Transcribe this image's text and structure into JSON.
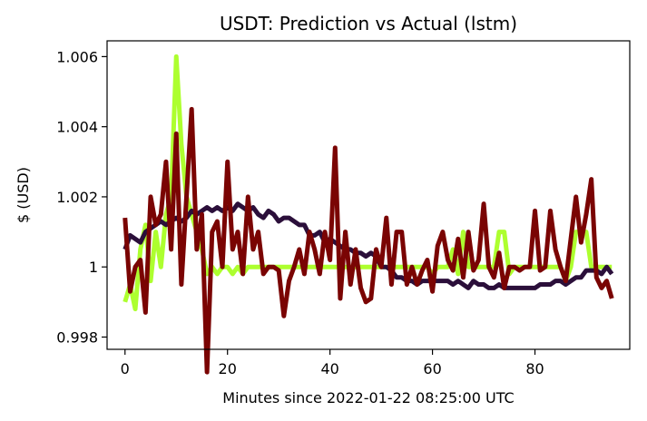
{
  "chart_data": {
    "type": "line",
    "title": "USDT: Prediction vs Actual (lstm)",
    "xlabel": "Minutes since 2022-01-22 08:25:00 UTC",
    "ylabel": "$ (USD)",
    "xlim": [
      -3.5,
      98.5
    ],
    "ylim": [
      0.99765,
      1.00645
    ],
    "xticks": [
      0,
      20,
      40,
      60,
      80
    ],
    "yticks": [
      0.998,
      1.0,
      1.002,
      1.004,
      1.006
    ],
    "xtick_labels": [
      "0",
      "20",
      "40",
      "60",
      "80"
    ],
    "ytick_labels": [
      "0.998",
      "1",
      "1.002",
      "1.004",
      "1.006"
    ],
    "grid": false,
    "series": [
      {
        "color": "#adff2f",
        "x": [
          0,
          1,
          2,
          3,
          4,
          5,
          6,
          7,
          8,
          9,
          10,
          11,
          12,
          13,
          14,
          15,
          16,
          17,
          18,
          19,
          20,
          21,
          22,
          23,
          24,
          25,
          26,
          27,
          28,
          29,
          30,
          31,
          32,
          33,
          34,
          35,
          36,
          37,
          38,
          39,
          40,
          41,
          42,
          43,
          44,
          45,
          46,
          47,
          48,
          49,
          50,
          51,
          52,
          53,
          54,
          55,
          56,
          57,
          58,
          59,
          60,
          61,
          62,
          63,
          64,
          65,
          66,
          67,
          68,
          69,
          70,
          71,
          72,
          73,
          74,
          75,
          76,
          77,
          78,
          79,
          80,
          81,
          82,
          83,
          84,
          85,
          86,
          87,
          88,
          89,
          90,
          91,
          92,
          93,
          94,
          95
        ],
        "y": [
          0.999,
          0.9995,
          0.9988,
          1.0005,
          1.0012,
          0.9996,
          1.001,
          1.0,
          1.0015,
          1.002,
          1.006,
          1.0035,
          1.002,
          1.0015,
          1.001,
          1.0005,
          0.9998,
          1.0,
          0.9998,
          1.0,
          1.0,
          0.9998,
          1.0,
          0.9998,
          1.0,
          1.0,
          1.0,
          1.0,
          1.0,
          1.0,
          1.0,
          1.0,
          1.0,
          1.0,
          1.0,
          1.0,
          1.0,
          1.0,
          1.0,
          1.0,
          1.0,
          1.0,
          1.0,
          1.0,
          1.0,
          1.0,
          1.0,
          1.0,
          1.0,
          1.0,
          1.0,
          1.0,
          1.0,
          1.0,
          1.0,
          1.0,
          1.0,
          1.0,
          1.0,
          1.0,
          0.9998,
          1.0,
          1.0,
          1.0,
          1.0005,
          0.9998,
          1.001,
          1.0,
          1.0,
          1.0,
          1.0,
          1.0,
          1.0,
          1.001,
          1.001,
          0.9998,
          1.0,
          1.0,
          1.0,
          1.0,
          1.0,
          1.0,
          1.0,
          1.0,
          1.0,
          1.0,
          0.9996,
          1.0,
          1.001,
          1.001,
          1.001,
          1.0,
          1.0,
          1.0,
          1.0,
          1.0
        ]
      },
      {
        "color": "#2b0f3a",
        "x": [
          0,
          1,
          2,
          3,
          4,
          5,
          6,
          7,
          8,
          9,
          10,
          11,
          12,
          13,
          14,
          15,
          16,
          17,
          18,
          19,
          20,
          21,
          22,
          23,
          24,
          25,
          26,
          27,
          28,
          29,
          30,
          31,
          32,
          33,
          34,
          35,
          36,
          37,
          38,
          39,
          40,
          41,
          42,
          43,
          44,
          45,
          46,
          47,
          48,
          49,
          50,
          51,
          52,
          53,
          54,
          55,
          56,
          57,
          58,
          59,
          60,
          61,
          62,
          63,
          64,
          65,
          66,
          67,
          68,
          69,
          70,
          71,
          72,
          73,
          74,
          75,
          76,
          77,
          78,
          79,
          80,
          81,
          82,
          83,
          84,
          85,
          86,
          87,
          88,
          89,
          90,
          91,
          92,
          93,
          94,
          95
        ],
        "y": [
          1.0005,
          1.0009,
          1.0008,
          1.0007,
          1.001,
          1.0011,
          1.0012,
          1.0013,
          1.0012,
          1.0013,
          1.0014,
          1.0013,
          1.0014,
          1.0016,
          1.0015,
          1.0016,
          1.0017,
          1.0016,
          1.0017,
          1.0016,
          1.0017,
          1.0016,
          1.0018,
          1.0017,
          1.0016,
          1.0017,
          1.0015,
          1.0014,
          1.0016,
          1.0015,
          1.0013,
          1.0014,
          1.0014,
          1.0013,
          1.0012,
          1.0012,
          1.0009,
          1.0009,
          1.001,
          1.0007,
          1.0008,
          1.0007,
          1.0006,
          1.0005,
          1.0005,
          1.0004,
          1.0004,
          1.0003,
          1.0004,
          1.0003,
          1.0,
          1.0,
          0.9999,
          0.9997,
          0.9997,
          0.9996,
          0.9996,
          0.9995,
          0.9996,
          0.9996,
          0.9996,
          0.9996,
          0.9996,
          0.9996,
          0.9995,
          0.9996,
          0.9995,
          0.9994,
          0.9996,
          0.9995,
          0.9995,
          0.9994,
          0.9994,
          0.9995,
          0.9994,
          0.9994,
          0.9994,
          0.9994,
          0.9994,
          0.9994,
          0.9994,
          0.9995,
          0.9995,
          0.9995,
          0.9996,
          0.9996,
          0.9995,
          0.9996,
          0.9997,
          0.9997,
          0.9999,
          0.9999,
          0.9999,
          0.9998,
          1.0,
          0.9998
        ]
      },
      {
        "color": "#7a0403",
        "x": [
          0,
          1,
          2,
          3,
          4,
          5,
          6,
          7,
          8,
          9,
          10,
          11,
          12,
          13,
          14,
          15,
          16,
          17,
          18,
          19,
          20,
          21,
          22,
          23,
          24,
          25,
          26,
          27,
          28,
          29,
          30,
          31,
          32,
          33,
          34,
          35,
          36,
          37,
          38,
          39,
          40,
          41,
          42,
          43,
          44,
          45,
          46,
          47,
          48,
          49,
          50,
          51,
          52,
          53,
          54,
          55,
          56,
          57,
          58,
          59,
          60,
          61,
          62,
          63,
          64,
          65,
          66,
          67,
          68,
          69,
          70,
          71,
          72,
          73,
          74,
          75,
          76,
          77,
          78,
          79,
          80,
          81,
          82,
          83,
          84,
          85,
          86,
          87,
          88,
          89,
          90,
          91,
          92,
          93,
          94,
          95
        ],
        "y": [
          1.0014,
          0.9993,
          1.0,
          1.0002,
          0.9987,
          1.002,
          1.0012,
          1.0015,
          1.003,
          1.0005,
          1.0038,
          0.9995,
          1.002,
          1.0045,
          1.0005,
          1.0015,
          0.997,
          1.001,
          1.0013,
          1.0,
          1.003,
          1.0005,
          1.001,
          0.9998,
          1.002,
          1.0005,
          1.001,
          0.9998,
          1.0,
          1.0,
          0.9999,
          0.9986,
          0.9996,
          1.0,
          1.0005,
          0.9998,
          1.001,
          1.0005,
          0.9998,
          1.001,
          1.0002,
          1.0034,
          0.9991,
          1.001,
          0.9995,
          1.0005,
          0.9994,
          0.999,
          0.9991,
          1.0005,
          1.0,
          1.0014,
          0.9995,
          1.001,
          1.001,
          0.9995,
          1.0,
          0.9995,
          0.9999,
          1.0002,
          0.9993,
          1.0006,
          1.001,
          1.0002,
          0.9999,
          1.0008,
          0.9997,
          1.001,
          0.9999,
          1.0002,
          1.0018,
          1.0,
          0.9997,
          1.0004,
          0.9994,
          1.0,
          1.0,
          0.9999,
          1.0,
          1.0,
          1.0016,
          0.9999,
          1.0,
          1.0016,
          1.0005,
          1.0,
          0.9996,
          1.0008,
          1.002,
          1.0007,
          1.0015,
          1.0025,
          0.9997,
          0.9994,
          0.9996,
          0.9991
        ]
      }
    ]
  }
}
